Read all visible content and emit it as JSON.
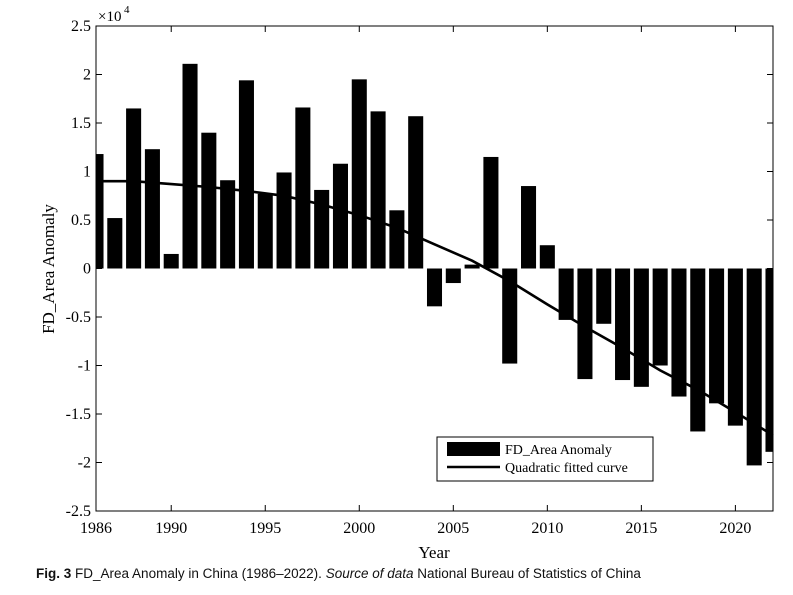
{
  "chart_data": {
    "type": "bar",
    "ylabel": "FD_Area Anomaly",
    "xlabel": "Year",
    "multiplier_base": "×10",
    "multiplier_exp": "4",
    "xlim": [
      1986,
      2022
    ],
    "ylim": [
      -2.5,
      2.5
    ],
    "x_ticks": [
      1986,
      1990,
      1995,
      2000,
      2005,
      2010,
      2015,
      2020
    ],
    "y_ticks": [
      2.5,
      2,
      1.5,
      1,
      0.5,
      0,
      -0.5,
      -1,
      -1.5,
      -2,
      -2.5
    ],
    "y_tick_labels": [
      "2.5",
      "2",
      "1.5",
      "1",
      "0.5",
      "0",
      "-0.5",
      "-1",
      "-1.5",
      "-2",
      "-2.5"
    ],
    "years": [
      1986,
      1987,
      1988,
      1989,
      1990,
      1991,
      1992,
      1993,
      1994,
      1995,
      1996,
      1997,
      1998,
      1999,
      2000,
      2001,
      2002,
      2003,
      2004,
      2005,
      2006,
      2007,
      2008,
      2009,
      2010,
      2011,
      2012,
      2013,
      2014,
      2015,
      2016,
      2017,
      2018,
      2019,
      2020,
      2021,
      2022
    ],
    "series": [
      {
        "name": "FD_Area Anomaly",
        "values": [
          1.18,
          0.52,
          1.65,
          1.23,
          0.15,
          2.11,
          1.4,
          0.91,
          1.94,
          0.77,
          0.99,
          1.66,
          0.81,
          1.08,
          1.95,
          1.62,
          0.6,
          1.57,
          -0.39,
          -0.15,
          0.04,
          1.15,
          -0.98,
          0.85,
          0.24,
          -0.53,
          -1.14,
          -0.57,
          -1.15,
          -1.22,
          -1.0,
          -1.32,
          -1.68,
          -1.39,
          -1.62,
          -2.03,
          -1.89
        ]
      },
      {
        "name": "Quadratic fitted curve",
        "type": "line",
        "x": [
          1986,
          1988,
          1990,
          1992,
          1994,
          1996,
          1998,
          2000,
          2002,
          2004,
          2006,
          2008,
          2010,
          2012,
          2014,
          2016,
          2018,
          2020,
          2022
        ],
        "values": [
          0.9,
          0.9,
          0.87,
          0.84,
          0.8,
          0.75,
          0.66,
          0.55,
          0.42,
          0.25,
          0.08,
          -0.13,
          -0.37,
          -0.6,
          -0.82,
          -1.05,
          -1.25,
          -1.48,
          -1.72
        ]
      }
    ],
    "legend": {
      "position": "bottom-right",
      "bar_label": "FD_Area Anomaly",
      "line_label": "Quadratic fitted curve"
    }
  },
  "caption": {
    "fig": "Fig. 3",
    "text": "FD_Area Anomaly in China (1986–2022).",
    "source_label": "Source of data",
    "source_text": "National Bureau of Statistics of China"
  }
}
